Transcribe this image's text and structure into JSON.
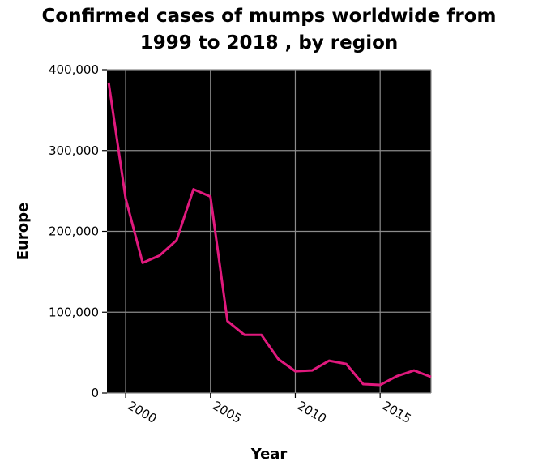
{
  "title_line1": "Confirmed cases of mumps worldwide from",
  "title_line2": "1999 to 2018 , by region",
  "colors": {
    "line": "#e0197d",
    "plot_background": "#000000",
    "grid": "#8c8c8c",
    "text": "#000000"
  },
  "chart_data": {
    "type": "line",
    "title": "Confirmed cases of mumps worldwide from 1999 to 2018 , by region",
    "xlabel": "Year",
    "ylabel": "Europe",
    "x": [
      1999,
      2000,
      2001,
      2002,
      2003,
      2004,
      2005,
      2006,
      2007,
      2008,
      2009,
      2010,
      2011,
      2012,
      2013,
      2014,
      2015,
      2016,
      2017,
      2018
    ],
    "series": [
      {
        "values": [
          384000,
          241000,
          161000,
          170000,
          189000,
          252000,
          243000,
          89000,
          72000,
          72000,
          42000,
          27000,
          28000,
          40000,
          36000,
          11000,
          10000,
          21000,
          28000,
          20000
        ]
      }
    ],
    "xlim": [
      1998.9,
      2018
    ],
    "ylim": [
      0,
      400000
    ],
    "xticks": [
      2000,
      2005,
      2010,
      2015
    ],
    "xtick_labels": [
      "2000",
      "2005",
      "2010",
      "2015"
    ],
    "yticks": [
      0,
      100000,
      200000,
      300000,
      400000
    ],
    "ytick_labels": [
      "0",
      "100,000",
      "200,000",
      "300,000",
      "400,000"
    ],
    "grid": true
  }
}
